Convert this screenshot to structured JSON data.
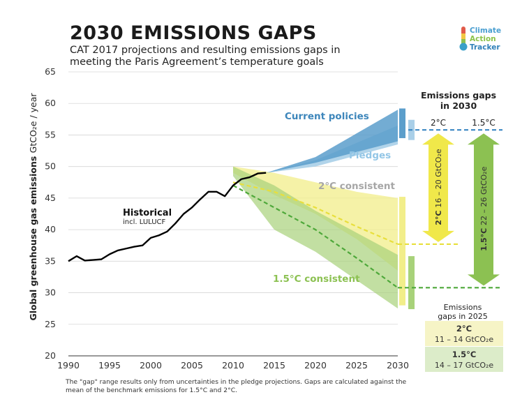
{
  "header": {
    "title": "2030 EMISSIONS GAPS",
    "subtitle": "CAT 2017 projections and resulting emissions gaps in meeting the Paris Agreement’s temperature goals"
  },
  "logo": {
    "icon": "thermometer-icon",
    "line1": "Climate",
    "line2": "Action",
    "line3": "Tracker"
  },
  "footnote": "The \"gap\" range results only from uncertainties in the pledge projections. Gaps are calculated against the mean of the benchmark emissions for 1.5°C and 2°C.",
  "colors": {
    "historical": "#000000",
    "current_policies": "#5b9ecb",
    "pledges": "#a9cfe8",
    "two_c": "#f2ee8a",
    "one_five_c": "#a8d27a",
    "two_c_arrow": "#f0e84a",
    "one_five_c_arrow": "#8cc152",
    "gap_line": "#3a86c3"
  },
  "chart_data": {
    "type": "line",
    "xlabel": "",
    "ylabel": "Global greenhouse gas emissions",
    "ylabel_unit": "GtCO₂e / year",
    "xlim": [
      1990,
      2030
    ],
    "ylim": [
      20,
      65
    ],
    "x_ticks": [
      1990,
      1995,
      2000,
      2005,
      2010,
      2015,
      2020,
      2025,
      2030
    ],
    "y_ticks": [
      20,
      25,
      30,
      35,
      40,
      45,
      50,
      55,
      60,
      65
    ],
    "grid": "horizontal",
    "series": [
      {
        "name": "Historical",
        "sublabel": "incl. LULUCF",
        "x": [
          1990,
          1991,
          1992,
          1993,
          1994,
          1995,
          1996,
          1997,
          1998,
          1999,
          2000,
          2001,
          2002,
          2003,
          2004,
          2005,
          2006,
          2007,
          2008,
          2009,
          2010,
          2011,
          2012,
          2013,
          2014
        ],
        "y": [
          35.0,
          35.8,
          35.1,
          35.2,
          35.3,
          36.1,
          36.7,
          37.0,
          37.3,
          37.5,
          38.7,
          39.1,
          39.7,
          41.0,
          42.5,
          43.5,
          44.8,
          46.0,
          46.0,
          45.3,
          47.0,
          48.0,
          48.3,
          48.9,
          49.0
        ]
      },
      {
        "name": "Current policies",
        "x": [
          2014,
          2020,
          2030
        ],
        "low": [
          49.0,
          50.6,
          54.0
        ],
        "high": [
          49.0,
          51.5,
          59.0
        ]
      },
      {
        "name": "Pledges",
        "x": [
          2014,
          2020,
          2030
        ],
        "low": [
          49.0,
          50.0,
          53.5
        ],
        "high": [
          49.0,
          51.0,
          56.5
        ]
      },
      {
        "name": "2°C consistent",
        "x": [
          2010,
          2015,
          2020,
          2025,
          2030
        ],
        "low": [
          49.0,
          45.5,
          42.5,
          38.5,
          33.5
        ],
        "high": [
          50.0,
          49.0,
          47.5,
          46.0,
          45.0
        ],
        "mean": [
          47.5,
          46.0,
          43.5,
          40.5,
          37.7
        ]
      },
      {
        "name": "1.5°C consistent",
        "x": [
          2010,
          2015,
          2020,
          2025,
          2030
        ],
        "low": [
          48.5,
          40.0,
          36.5,
          32.0,
          27.5
        ],
        "high": [
          50.0,
          47.0,
          43.0,
          39.5,
          36.0
        ],
        "mean": [
          47.0,
          43.5,
          40.0,
          35.5,
          30.8
        ]
      }
    ],
    "gaps_2030": {
      "title": "Emissions gaps in 2030",
      "current_policy_level": 55.8,
      "two_c": {
        "label": "2°C",
        "range": "16 – 20 GtCO₂e",
        "benchmark": 37.7
      },
      "one_five_c": {
        "label": "1.5°C",
        "range": "22 – 26 GtCO₂e",
        "benchmark": 30.8
      }
    },
    "gaps_2025": {
      "title": "Emissions gaps in 2025",
      "two_c": {
        "label": "2°C",
        "range": "11 – 14 GtCO₂e"
      },
      "one_five_c": {
        "label": "1.5°C",
        "range": "14 – 17 GtCO₂e"
      }
    }
  }
}
